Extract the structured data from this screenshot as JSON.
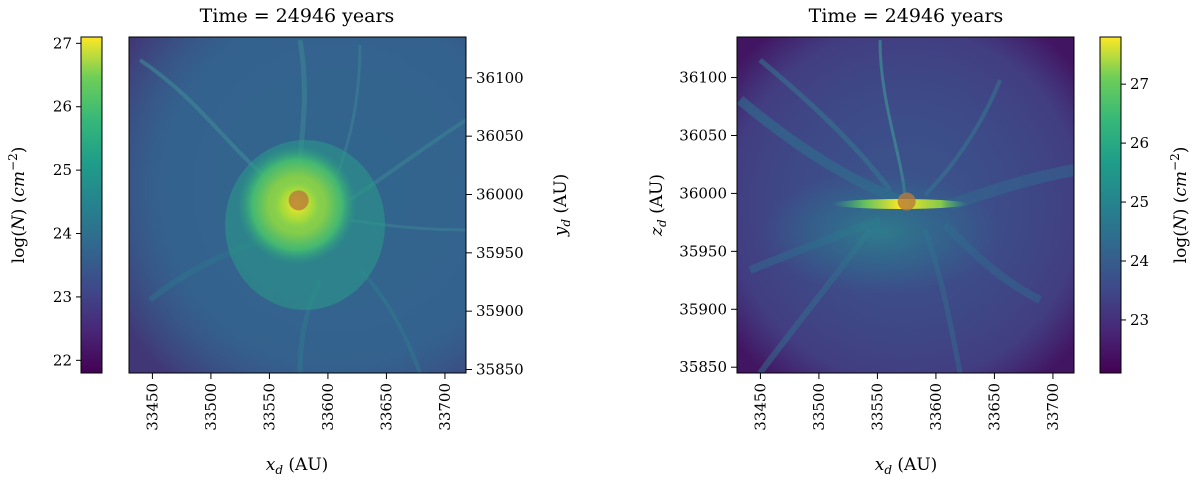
{
  "chart_data": [
    {
      "type": "heatmap",
      "title": "Time = 24946 years",
      "xlabel": "x_d (AU)",
      "ylabel": "y_d (AU)",
      "xlim": [
        33430,
        33718
      ],
      "ylim": [
        35847,
        36135
      ],
      "x_ticks": [
        33450,
        33500,
        33550,
        33600,
        33650,
        33700
      ],
      "y_ticks": [
        35850,
        35900,
        35950,
        36000,
        36050,
        36100
      ],
      "x_tick_labels": [
        "33450",
        "33500",
        "33550",
        "33600",
        "33650",
        "33700"
      ],
      "y_tick_labels": [
        "35850",
        "35900",
        "35950",
        "36000",
        "36050",
        "36100"
      ],
      "colorbar": {
        "label": "log(N) (cm^-2)",
        "range": [
          21.8,
          27.1
        ],
        "ticks": [
          22,
          23,
          24,
          25,
          26,
          27
        ],
        "tick_labels": [
          "22",
          "23",
          "24",
          "25",
          "26",
          "27"
        ],
        "placement": "left",
        "colormap": "viridis"
      },
      "marker": {
        "x": 33575,
        "y": 35995,
        "color": "#b87a3a"
      },
      "features": [
        {
          "shape": "disk",
          "cx": 33575,
          "cy": 35995,
          "rx": 55,
          "ry": 55,
          "level": 25.4
        },
        {
          "shape": "disk",
          "cx": 33575,
          "cy": 35995,
          "rx": 25,
          "ry": 25,
          "level": 26.3
        }
      ],
      "background_level": 23.5
    },
    {
      "type": "heatmap",
      "title": "Time = 24946 years",
      "xlabel": "x_d (AU)",
      "ylabel": "z_d (AU)",
      "xlim": [
        33430,
        33718
      ],
      "ylim": [
        35845,
        36135
      ],
      "x_ticks": [
        33450,
        33500,
        33550,
        33600,
        33650,
        33700
      ],
      "y_ticks": [
        35850,
        35900,
        35950,
        36000,
        36050,
        36100
      ],
      "x_tick_labels": [
        "33450",
        "33500",
        "33550",
        "33600",
        "33650",
        "33700"
      ],
      "y_tick_labels": [
        "35850",
        "35900",
        "35950",
        "36000",
        "36050",
        "36100"
      ],
      "colorbar": {
        "label": "log(N) (cm^-2)",
        "range": [
          22.1,
          27.8
        ],
        "ticks": [
          23,
          24,
          25,
          26,
          27
        ],
        "tick_labels": [
          "23",
          "24",
          "25",
          "26",
          "27"
        ],
        "placement": "right",
        "colormap": "viridis"
      },
      "marker": {
        "x": 33575,
        "y": 35993,
        "color": "#b87a3a"
      },
      "features": [
        {
          "shape": "disk",
          "cx": 33560,
          "cy": 35985,
          "rx": 70,
          "ry": 30,
          "level": 24.3
        },
        {
          "shape": "disk",
          "cx": 33575,
          "cy": 35993,
          "rx": 45,
          "ry": 3,
          "level": 26.8
        }
      ],
      "background_level": 23.0
    }
  ]
}
